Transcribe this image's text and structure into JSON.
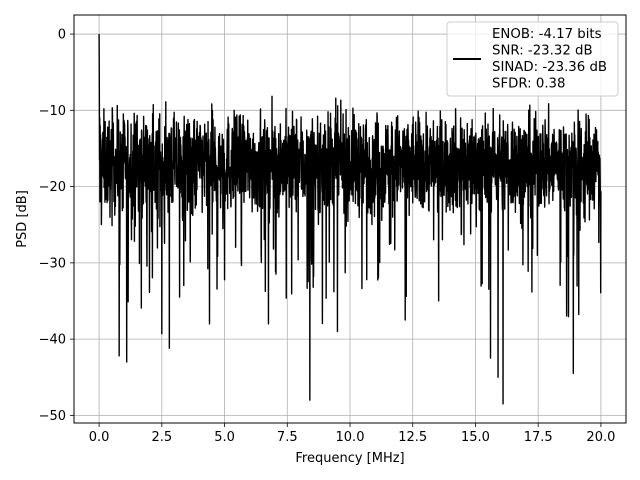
{
  "chart_data": {
    "type": "line",
    "xlabel": "Frequency [MHz]",
    "ylabel": "PSD [dB]",
    "xlim": [
      -1.0,
      21.0
    ],
    "ylim": [
      -51.0,
      2.5
    ],
    "xticks": [
      0.0,
      2.5,
      5.0,
      7.5,
      10.0,
      12.5,
      15.0,
      17.5,
      20.0
    ],
    "xtick_labels": [
      "0.0",
      "2.5",
      "5.0",
      "7.5",
      "10.0",
      "12.5",
      "15.0",
      "17.5",
      "20.0"
    ],
    "yticks": [
      0,
      -10,
      -20,
      -30,
      -40,
      -50
    ],
    "ytick_labels": [
      "0",
      "−10",
      "−20",
      "−30",
      "−40",
      "−50"
    ],
    "grid": true,
    "legend_position": "top-right",
    "series": [
      {
        "name": "ENOB: -4.17 bits\nSNR: -23.32 dB\nSINAD: -23.36 dB\nSFDR: 0.38",
        "color": "#000000",
        "x_range": [
          0.0,
          20.0
        ],
        "baseline_db": -17,
        "noise_band_db": [
          -28,
          -8
        ],
        "peaks": [
          {
            "x": 0.0,
            "y": 0.0
          }
        ],
        "dips": [
          {
            "x": 0.8,
            "y": -42.2
          },
          {
            "x": 1.1,
            "y": -43.0
          },
          {
            "x": 2.5,
            "y": -39.3
          },
          {
            "x": 2.8,
            "y": -41.2
          },
          {
            "x": 4.4,
            "y": -38.0
          },
          {
            "x": 8.4,
            "y": -48.0
          },
          {
            "x": 9.5,
            "y": -39.0
          },
          {
            "x": 12.2,
            "y": -37.5
          },
          {
            "x": 15.6,
            "y": -42.5
          },
          {
            "x": 15.9,
            "y": -45.0
          },
          {
            "x": 16.1,
            "y": -48.5
          },
          {
            "x": 18.9,
            "y": -44.5
          }
        ]
      }
    ]
  }
}
